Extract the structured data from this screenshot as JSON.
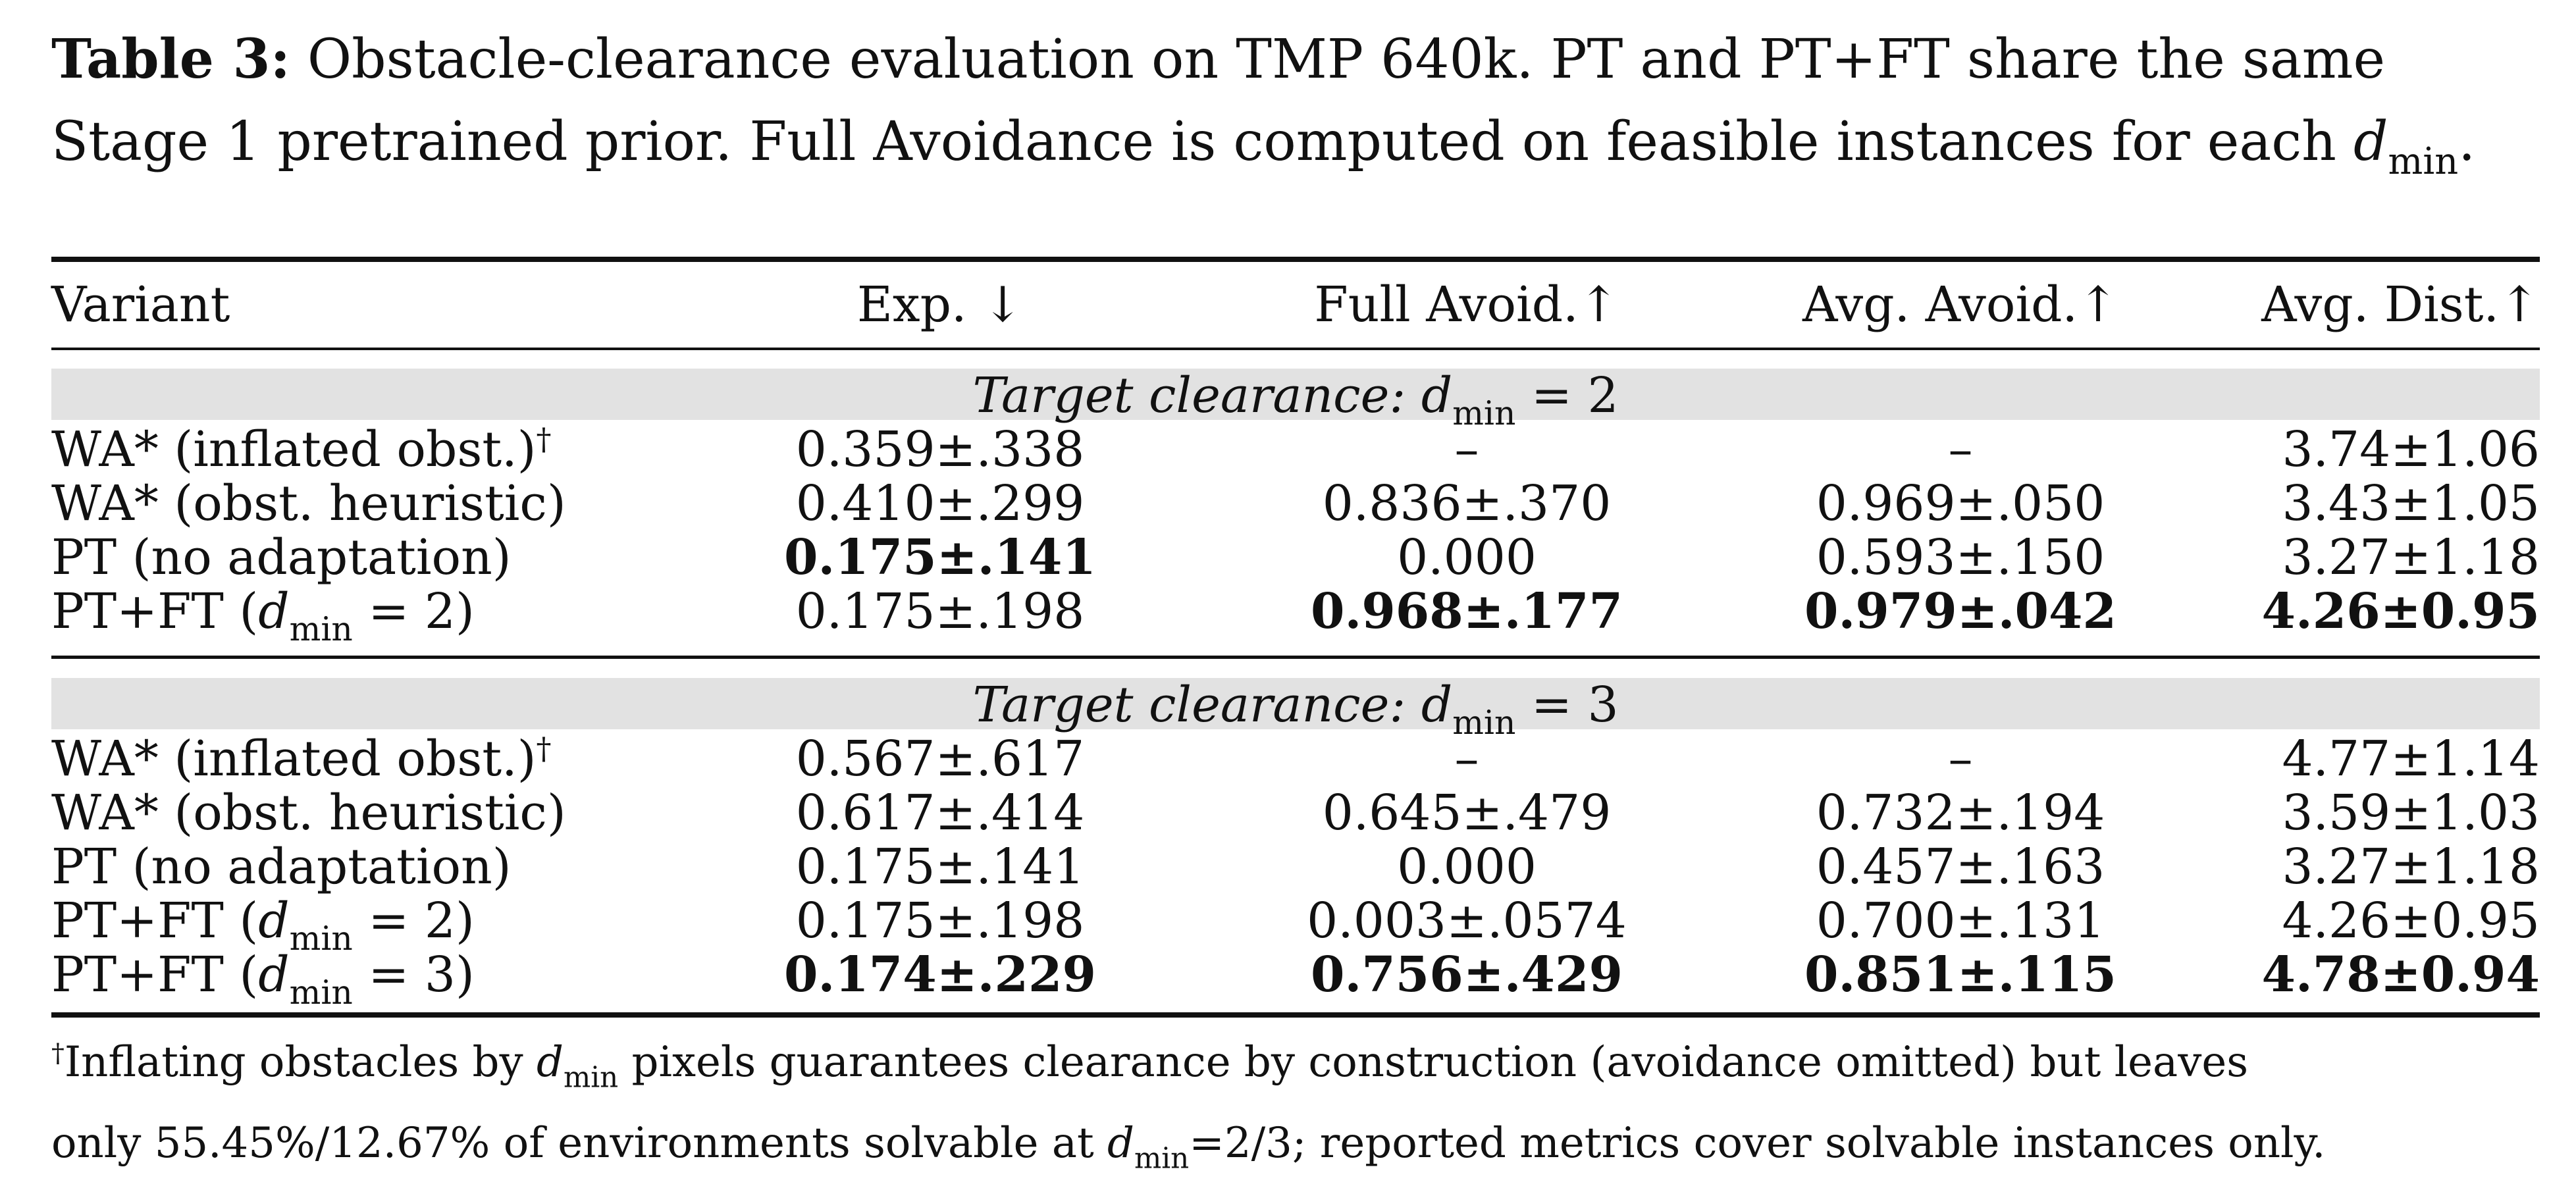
{
  "caption": {
    "label": "Table 3:",
    "line1_text": "Obstacle-clearance evaluation on TMP 640k. PT and PT+FT share the same",
    "line2_pre": "Stage 1 pretrained prior. Full Avoidance is computed on feasible instances for each",
    "line2_math_d": "d",
    "line2_math_sub": "min",
    "line2_post": "."
  },
  "table": {
    "headers": {
      "variant": "Variant",
      "exp": "Exp. ↓",
      "full_avoid": "Full Avoid.↑",
      "avg_avoid": "Avg. Avoid.↑",
      "avg_dist": "Avg. Dist.↑"
    },
    "groups": [
      {
        "title_pre": "Target clearance:",
        "title_d": "d",
        "title_sub": "min",
        "title_eq": "= 2",
        "rows": [
          {
            "variant": "WA* (inflated obst.)",
            "dagger": "†",
            "exp": "0.359±.338",
            "full": "–",
            "avg": "–",
            "dist": "3.74±1.06"
          },
          {
            "variant": "WA* (obst. heuristic)",
            "dagger": "",
            "exp": "0.410±.299",
            "full": "0.836±.370",
            "avg": "0.969±.050",
            "dist": "3.43±1.05"
          },
          {
            "variant": "PT (no adaptation)",
            "dagger": "",
            "exp": "0.175±.141",
            "full": "0.000",
            "avg": "0.593±.150",
            "dist": "3.27±1.18"
          },
          {
            "variant_pre": "PT+FT (",
            "variant_d": "d",
            "variant_sub": "min",
            "variant_post": " = 2)",
            "exp": "0.175±.198",
            "full": "0.968±.177",
            "avg": "0.979±.042",
            "dist": "4.26±0.95"
          }
        ]
      },
      {
        "title_pre": "Target clearance:",
        "title_d": "d",
        "title_sub": "min",
        "title_eq": "= 3",
        "rows": [
          {
            "variant": "WA* (inflated obst.)",
            "dagger": "†",
            "exp": "0.567±.617",
            "full": "–",
            "avg": "–",
            "dist": "4.77±1.14"
          },
          {
            "variant": "WA* (obst. heuristic)",
            "dagger": "",
            "exp": "0.617±.414",
            "full": "0.645±.479",
            "avg": "0.732±.194",
            "dist": "3.59±1.03"
          },
          {
            "variant": "PT (no adaptation)",
            "dagger": "",
            "exp": "0.175±.141",
            "full": "0.000",
            "avg": "0.457±.163",
            "dist": "3.27±1.18"
          },
          {
            "variant_pre": "PT+FT (",
            "variant_d": "d",
            "variant_sub": "min",
            "variant_post": " = 2)",
            "exp": "0.175±.198",
            "full": "0.003±.0574",
            "avg": "0.700±.131",
            "dist": "4.26±0.95"
          },
          {
            "variant_pre": "PT+FT (",
            "variant_d": "d",
            "variant_sub": "min",
            "variant_post": " = 3)",
            "exp": "0.174±.229",
            "full": "0.756±.429",
            "avg": "0.851±.115",
            "dist": "4.78±0.94"
          }
        ]
      }
    ]
  },
  "footnote": {
    "dagger": "†",
    "line1_pre": "Inflating obstacles by",
    "line1_d": "d",
    "line1_sub": "min",
    "line1_post": "pixels guarantees clearance by construction (avoidance omitted) but leaves",
    "line2_pre": "only 55.45%/12.67% of environments solvable at",
    "line2_d": "d",
    "line2_sub": "min",
    "line2_post": "=2/3; reported metrics cover solvable instances only."
  }
}
